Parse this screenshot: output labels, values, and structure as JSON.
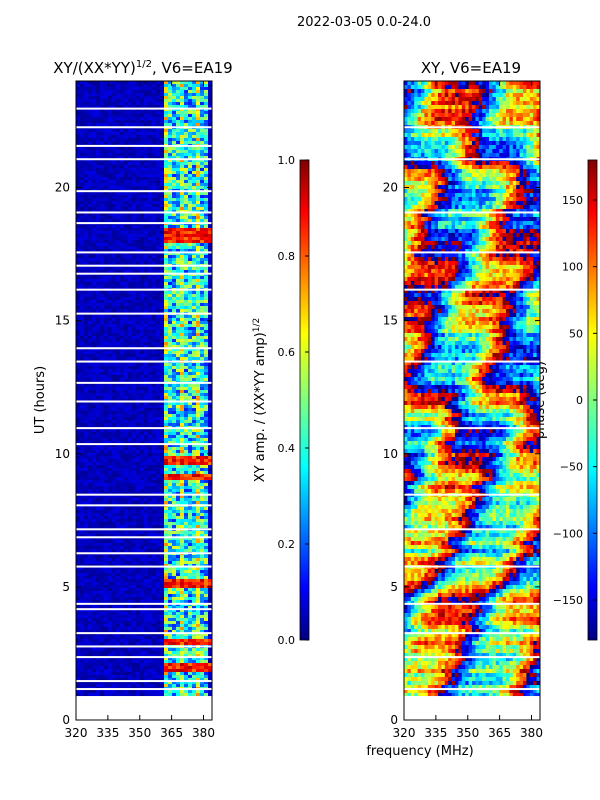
{
  "figure_title": "2022-03-05 0.0-24.0",
  "shared_xlabel": "frequency (MHz)",
  "colors": {
    "jet_low": "#00007f",
    "jet_high": "#7f0000",
    "gap": "#ffffff",
    "axis": "#000000"
  },
  "chart_data": [
    {
      "type": "heatmap",
      "title": "XY/(XX*YY)^1/2, V6=EA19",
      "title_main": "XY/(XX*YY)",
      "title_exp": "1/2",
      "title_rest": ", V6=EA19",
      "xlabel": "",
      "ylabel": "UT (hours)",
      "xlim": [
        320,
        384
      ],
      "ylim": [
        0,
        24
      ],
      "xticks": [
        320,
        335,
        350,
        365,
        380
      ],
      "yticks": [
        0,
        5,
        10,
        15,
        20
      ],
      "data_start_hour": 0.9,
      "bright_band_mhz": [
        361,
        382
      ],
      "bright_rows_hours": [
        2.0,
        3.0,
        5.2,
        9.2,
        9.8,
        18.1,
        18.4
      ],
      "gap_hours": [
        1.2,
        1.5,
        2.4,
        2.8,
        3.3,
        4.2,
        4.4,
        5.8,
        6.3,
        6.9,
        7.2,
        8.1,
        8.5,
        10.4,
        11.0,
        12.0,
        12.7,
        13.5,
        14.0,
        15.3,
        16.2,
        16.8,
        17.1,
        17.6,
        18.7,
        19.1,
        19.9,
        21.1,
        21.6,
        22.3,
        23.0
      ],
      "colorbar": {
        "label": "XY amp. / (XX*YY amp)^1/2",
        "label_main": "XY amp. / (XX*YY amp)",
        "label_exp": "1/2",
        "min": 0.0,
        "max": 1.0,
        "ticks": [
          "0.0",
          "0.2",
          "0.4",
          "0.6",
          "0.8",
          "1.0"
        ],
        "tick_values": [
          0.0,
          0.2,
          0.4,
          0.6,
          0.8,
          1.0
        ]
      }
    },
    {
      "type": "heatmap",
      "title": "XY, V6=EA19",
      "xlabel": "frequency (MHz)",
      "ylabel": "",
      "xlim": [
        320,
        384
      ],
      "ylim": [
        0,
        24
      ],
      "xticks": [
        320,
        335,
        350,
        365,
        380
      ],
      "yticks": [
        0,
        5,
        10,
        15,
        20
      ],
      "data_start_hour": 0.9,
      "gap_hours": [
        1.2,
        2.4,
        3.3,
        4.4,
        5.8,
        7.2,
        8.5,
        11.0,
        13.5,
        16.2,
        17.6,
        19.1,
        21.1,
        22.3
      ],
      "colorbar": {
        "label": "phase (deg)",
        "min": -180,
        "max": 180,
        "ticks": [
          "150",
          "100",
          "50",
          "0",
          "−50",
          "−100",
          "−150"
        ],
        "tick_values": [
          150,
          100,
          50,
          0,
          -50,
          -100,
          -150
        ]
      }
    }
  ]
}
